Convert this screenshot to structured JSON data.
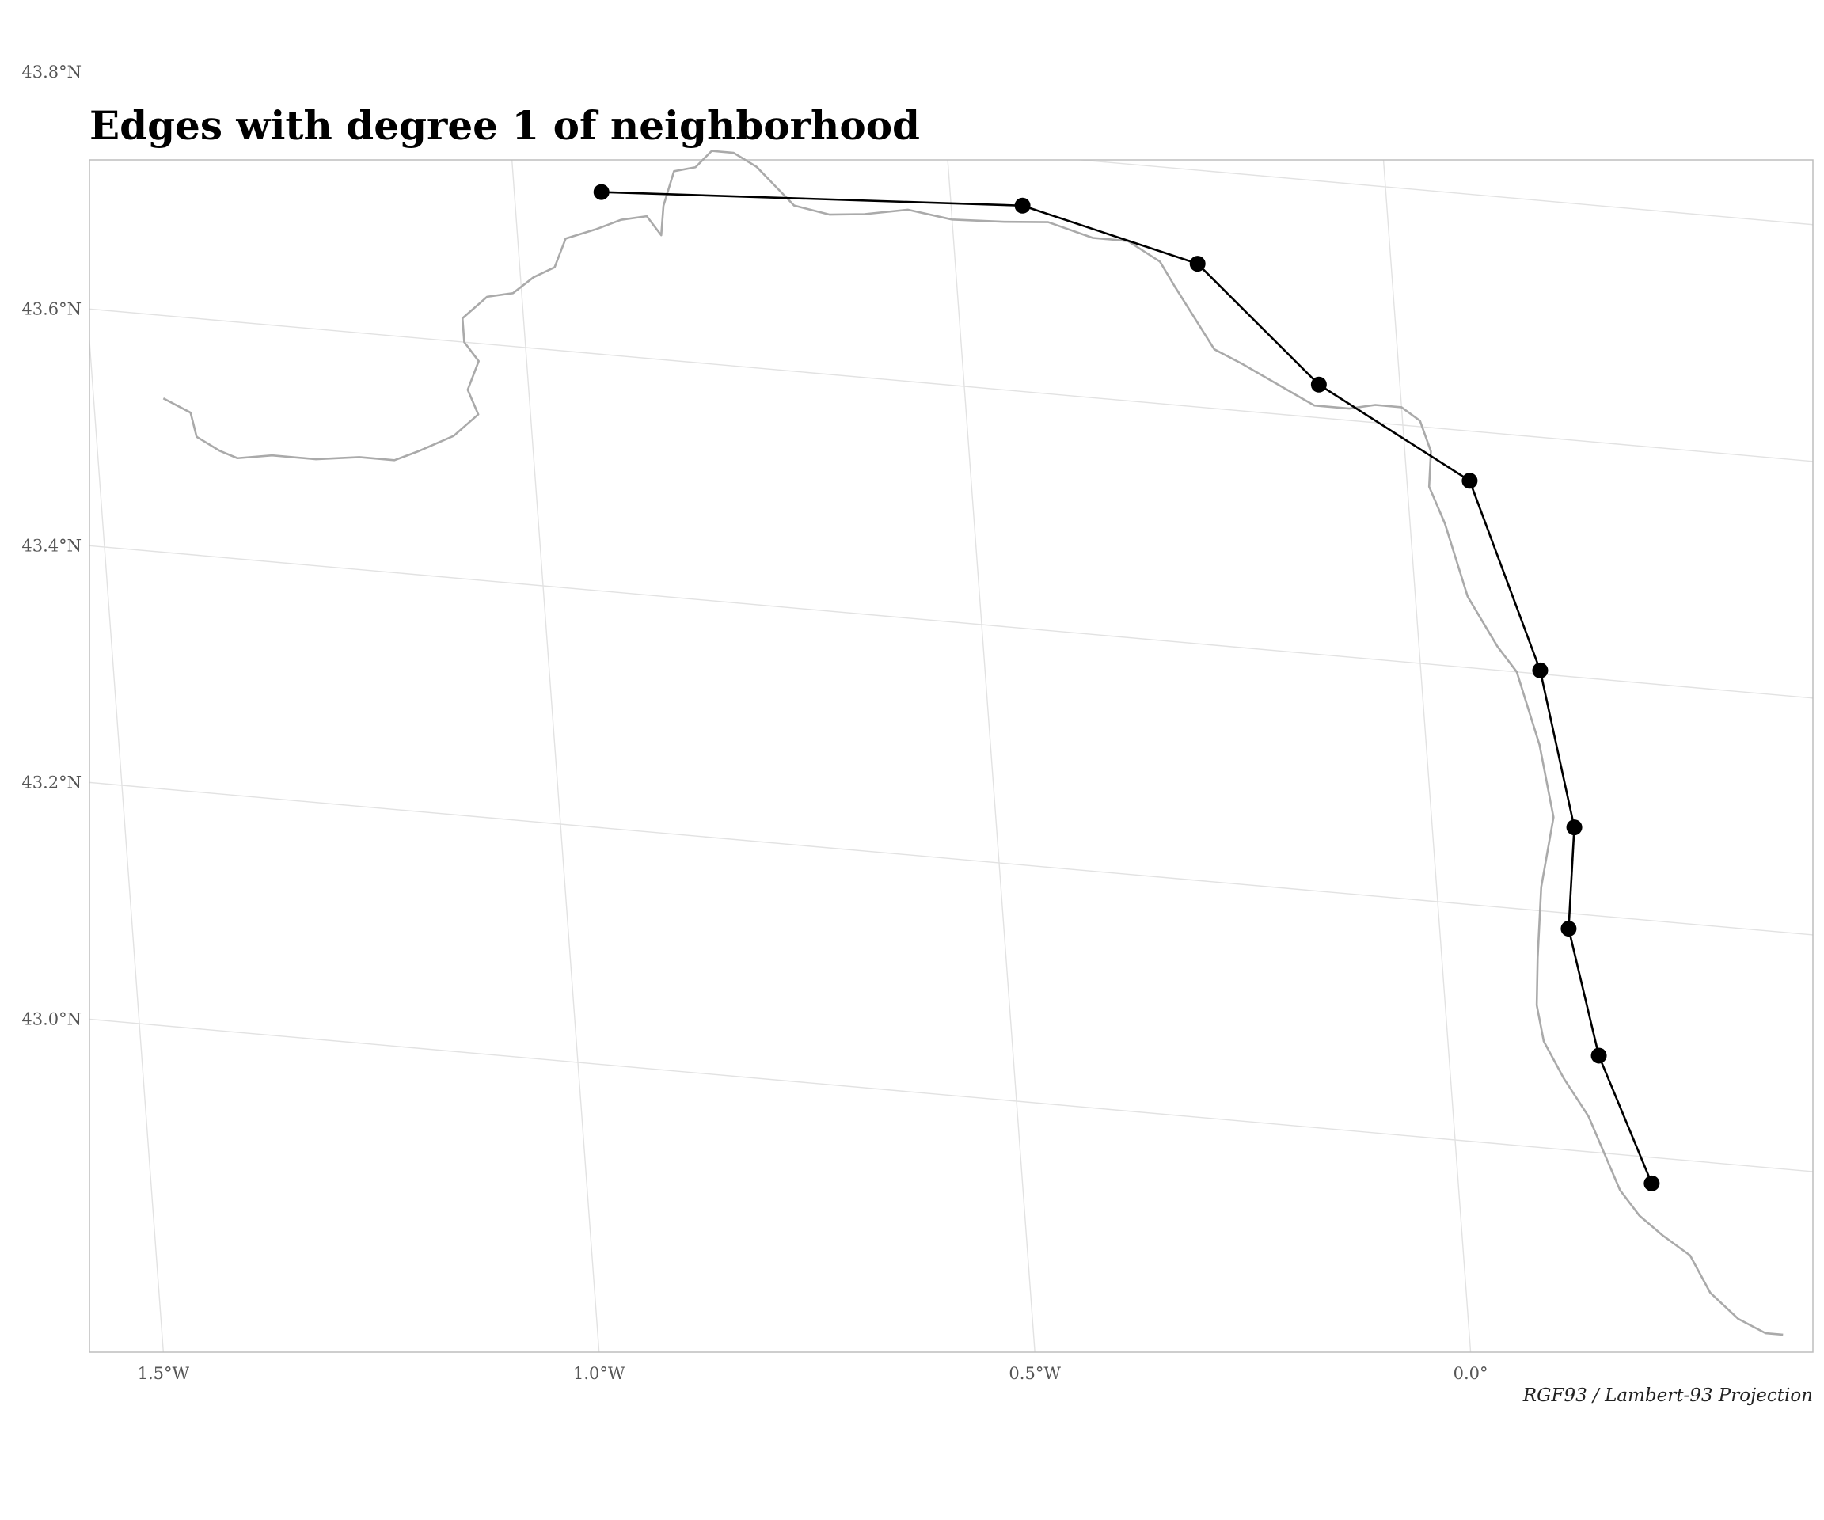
{
  "title": "Edges with degree 1 of neighborhood",
  "caption": "RGF93 / Lambert-93 Projection",
  "colors": {
    "river": "#aaaaaa",
    "graph": "#000000",
    "grid": "#e2e2e2",
    "frame": "#bdbdbd"
  },
  "axes": {
    "lat_ticks": [
      {
        "label": "43.8°N",
        "value": 43.8
      },
      {
        "label": "43.6°N",
        "value": 43.6
      },
      {
        "label": "43.4°N",
        "value": 43.4
      },
      {
        "label": "43.2°N",
        "value": 43.2
      },
      {
        "label": "43.0°N",
        "value": 43.0
      }
    ],
    "lon_ticks": [
      {
        "label": "1.5°W",
        "value": -1.5
      },
      {
        "label": "1.0°W",
        "value": -1.0
      },
      {
        "label": "0.5°W",
        "value": -0.5
      },
      {
        "label": "0.0°",
        "value": 0.0
      }
    ]
  },
  "chart_data": {
    "type": "network",
    "nodes": [
      {
        "lon": -0.9,
        "lat": 43.737
      },
      {
        "lon": -0.418,
        "lat": 43.757
      },
      {
        "lon": -0.222,
        "lat": 43.721
      },
      {
        "lon": -0.093,
        "lat": 43.628
      },
      {
        "lon": 0.072,
        "lat": 43.558
      },
      {
        "lon": 0.137,
        "lat": 43.403
      },
      {
        "lon": 0.163,
        "lat": 43.273
      },
      {
        "lon": 0.148,
        "lat": 43.187
      },
      {
        "lon": 0.172,
        "lat": 43.082
      },
      {
        "lon": 0.222,
        "lat": 42.978
      }
    ],
    "edges": [
      [
        0,
        1
      ],
      [
        1,
        2
      ],
      [
        2,
        3
      ],
      [
        3,
        4
      ],
      [
        4,
        5
      ],
      [
        5,
        6
      ],
      [
        6,
        7
      ],
      [
        7,
        8
      ],
      [
        8,
        9
      ]
    ],
    "river": [
      [
        -1.42,
        43.53
      ],
      [
        -1.39,
        43.52
      ],
      [
        -1.385,
        43.5
      ],
      [
        -1.36,
        43.49
      ],
      [
        -1.34,
        43.485
      ],
      [
        -1.3,
        43.49
      ],
      [
        -1.25,
        43.49
      ],
      [
        -1.2,
        43.495
      ],
      [
        -1.16,
        43.495
      ],
      [
        -1.13,
        43.505
      ],
      [
        -1.09,
        43.52
      ],
      [
        -1.06,
        43.54
      ],
      [
        -1.07,
        43.56
      ],
      [
        -1.055,
        43.585
      ],
      [
        -1.07,
        43.6
      ],
      [
        -1.07,
        43.62
      ],
      [
        -1.04,
        43.64
      ],
      [
        -1.01,
        43.645
      ],
      [
        -0.985,
        43.66
      ],
      [
        -0.96,
        43.67
      ],
      [
        -0.945,
        43.695
      ],
      [
        -0.91,
        43.705
      ],
      [
        -0.88,
        43.715
      ],
      [
        -0.85,
        43.72
      ],
      [
        -0.835,
        43.705
      ],
      [
        -0.83,
        43.73
      ],
      [
        -0.815,
        43.76
      ],
      [
        -0.79,
        43.765
      ],
      [
        -0.77,
        43.78
      ],
      [
        -0.745,
        43.78
      ],
      [
        -0.72,
        43.77
      ],
      [
        -0.7,
        43.755
      ],
      [
        -0.68,
        43.74
      ],
      [
        -0.64,
        43.735
      ],
      [
        -0.6,
        43.738
      ],
      [
        -0.55,
        43.745
      ],
      [
        -0.5,
        43.74
      ],
      [
        -0.44,
        43.742
      ],
      [
        -0.39,
        43.745
      ],
      [
        -0.34,
        43.735
      ],
      [
        -0.3,
        43.735
      ],
      [
        -0.265,
        43.72
      ],
      [
        -0.25,
        43.7
      ],
      [
        -0.23,
        43.675
      ],
      [
        -0.21,
        43.65
      ],
      [
        -0.18,
        43.64
      ],
      [
        -0.14,
        43.625
      ],
      [
        -0.1,
        43.61
      ],
      [
        -0.06,
        43.61
      ],
      [
        -0.03,
        43.615
      ],
      [
        0.0,
        43.615
      ],
      [
        0.02,
        43.605
      ],
      [
        0.03,
        43.58
      ],
      [
        0.025,
        43.55
      ],
      [
        0.04,
        43.52
      ],
      [
        0.05,
        43.49
      ],
      [
        0.06,
        43.46
      ],
      [
        0.075,
        43.44
      ],
      [
        0.09,
        43.42
      ],
      [
        0.11,
        43.4
      ],
      [
        0.12,
        43.37
      ],
      [
        0.13,
        43.34
      ],
      [
        0.135,
        43.31
      ],
      [
        0.14,
        43.28
      ],
      [
        0.13,
        43.25
      ],
      [
        0.12,
        43.22
      ],
      [
        0.115,
        43.19
      ],
      [
        0.11,
        43.16
      ],
      [
        0.105,
        43.12
      ],
      [
        0.11,
        43.09
      ],
      [
        0.13,
        43.06
      ],
      [
        0.155,
        43.03
      ],
      [
        0.17,
        43.0
      ],
      [
        0.185,
        42.97
      ],
      [
        0.205,
        42.95
      ],
      [
        0.23,
        42.935
      ],
      [
        0.26,
        42.92
      ],
      [
        0.28,
        42.89
      ],
      [
        0.31,
        42.87
      ],
      [
        0.34,
        42.86
      ],
      [
        0.36,
        42.86
      ]
    ]
  }
}
